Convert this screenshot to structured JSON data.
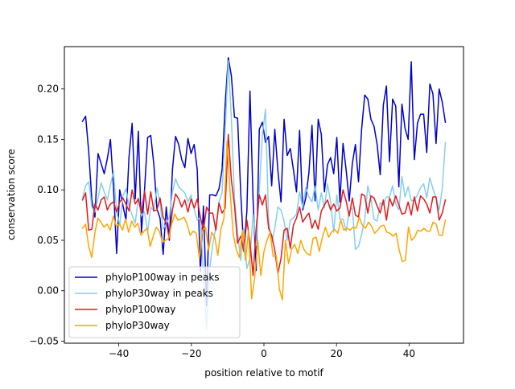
{
  "chart_data": {
    "type": "line",
    "xlabel": "position relative to motif",
    "ylabel": "conservation score",
    "xlim": [
      -55,
      55
    ],
    "ylim": [
      -0.052,
      0.242
    ],
    "xticks": [
      -40,
      -20,
      0,
      20,
      40
    ],
    "xtick_labels": [
      "−40",
      "−20",
      "0",
      "20",
      "40"
    ],
    "yticks": [
      -0.05,
      0.0,
      0.05,
      0.1,
      0.15,
      0.2
    ],
    "ytick_labels": [
      "−0.05",
      "0.00",
      "0.05",
      "0.10",
      "0.15",
      "0.20"
    ],
    "grid": false,
    "legend_position": "lower-left",
    "x_start": -50,
    "series": [
      {
        "name": "phyloP100way in peaks",
        "color": "#0000cd",
        "values": [
          0.168,
          0.173,
          0.138,
          0.09,
          0.073,
          0.136,
          0.126,
          0.116,
          0.131,
          0.15,
          0.102,
          0.037,
          0.1,
          0.085,
          0.07,
          0.133,
          0.166,
          0.091,
          0.158,
          0.058,
          0.1,
          0.152,
          0.154,
          0.125,
          0.081,
          0.072,
          0.036,
          0.083,
          0.05,
          0.12,
          0.153,
          0.145,
          0.13,
          0.122,
          0.151,
          0.136,
          0.145,
          0.12,
          0.019,
          0.084,
          -0.015,
          0.095,
          0.095,
          0.094,
          0.101,
          0.12,
          0.185,
          0.231,
          0.213,
          0.172,
          0.171,
          0.098,
          0.04,
          0.079,
          0.198,
          0.09,
          0.02,
          0.16,
          0.167,
          0.147,
          0.153,
          0.104,
          0.16,
          0.119,
          0.088,
          0.17,
          0.134,
          0.141,
          0.12,
          0.098,
          0.159,
          0.08,
          0.092,
          0.117,
          0.164,
          0.089,
          0.17,
          0.155,
          0.098,
          0.125,
          0.132,
          0.116,
          0.152,
          0.088,
          0.146,
          0.12,
          0.089,
          0.126,
          0.145,
          0.108,
          0.16,
          0.194,
          0.19,
          0.17,
          0.163,
          0.145,
          0.115,
          0.184,
          0.203,
          0.128,
          0.19,
          0.183,
          0.103,
          0.185,
          0.161,
          0.15,
          0.227,
          0.13,
          0.166,
          0.175,
          0.175,
          0.137,
          0.205,
          0.195,
          0.146,
          0.2,
          0.187,
          0.167
        ]
      },
      {
        "name": "phyloP30way in peaks",
        "color": "#87ceeb",
        "values": [
          0.092,
          0.104,
          0.108,
          0.083,
          0.078,
          0.092,
          0.107,
          0.098,
          0.09,
          0.105,
          0.118,
          0.078,
          0.065,
          0.094,
          0.101,
          0.084,
          0.075,
          0.067,
          0.092,
          0.074,
          0.078,
          0.058,
          0.083,
          0.079,
          0.102,
          0.087,
          0.061,
          0.066,
          0.073,
          0.098,
          0.111,
          0.103,
          0.1,
          0.097,
          0.088,
          0.095,
          0.081,
          0.07,
          0.073,
          0.016,
          -0.039,
          0.022,
          0.046,
          0.063,
          0.088,
          0.097,
          0.158,
          0.228,
          0.171,
          0.092,
          0.058,
          0.03,
          0.061,
          0.022,
          0.032,
          0.076,
          0.045,
          0.1,
          0.155,
          0.18,
          0.07,
          0.047,
          0.062,
          0.083,
          0.08,
          0.069,
          0.05,
          0.07,
          0.072,
          0.076,
          0.098,
          0.082,
          0.102,
          0.093,
          0.088,
          0.104,
          0.08,
          0.097,
          0.082,
          0.106,
          0.088,
          0.058,
          0.095,
          0.071,
          0.071,
          0.059,
          0.079,
          0.082,
          0.041,
          0.044,
          0.056,
          0.07,
          0.104,
          0.091,
          0.071,
          0.069,
          0.087,
          0.085,
          0.093,
          0.093,
          0.104,
          0.086,
          0.08,
          0.113,
          0.093,
          0.103,
          0.089,
          0.09,
          0.095,
          0.102,
          0.106,
          0.092,
          0.112,
          0.101,
          0.092,
          0.08,
          0.101,
          0.147
        ]
      },
      {
        "name": "phyloP100way",
        "color": "#e31a1c",
        "values": [
          0.09,
          0.097,
          0.06,
          0.061,
          0.086,
          0.08,
          0.09,
          0.093,
          0.08,
          0.086,
          0.088,
          0.078,
          0.088,
          0.092,
          0.086,
          0.079,
          0.1,
          0.086,
          0.091,
          0.077,
          0.099,
          0.076,
          0.098,
          0.079,
          0.08,
          0.092,
          0.073,
          0.067,
          0.052,
          0.08,
          0.096,
          0.091,
          0.083,
          0.09,
          0.078,
          0.091,
          0.082,
          0.091,
          0.073,
          0.06,
          0.083,
          0.077,
          0.077,
          0.06,
          0.087,
          0.077,
          0.082,
          0.155,
          0.11,
          0.085,
          0.047,
          0.054,
          0.039,
          0.07,
          0.048,
          0.015,
          0.062,
          0.095,
          0.085,
          0.095,
          0.062,
          0.055,
          0.04,
          0.017,
          0.032,
          0.06,
          0.062,
          0.042,
          0.065,
          0.072,
          0.083,
          0.068,
          0.073,
          0.077,
          0.062,
          0.07,
          0.061,
          0.079,
          0.085,
          0.09,
          0.08,
          0.086,
          0.079,
          0.082,
          0.1,
          0.089,
          0.074,
          0.092,
          0.075,
          0.073,
          0.096,
          0.094,
          0.077,
          0.094,
          0.092,
          0.084,
          0.077,
          0.09,
          0.07,
          0.092,
          0.084,
          0.094,
          0.085,
          0.076,
          0.077,
          0.088,
          0.075,
          0.093,
          0.079,
          0.094,
          0.091,
          0.086,
          0.077,
          0.093,
          0.093,
          0.07,
          0.077,
          0.09
        ]
      },
      {
        "name": "phyloP30way",
        "color": "#ffa500",
        "values": [
          0.062,
          0.066,
          0.044,
          0.033,
          0.057,
          0.072,
          0.068,
          0.063,
          0.066,
          0.06,
          0.074,
          0.064,
          0.066,
          0.06,
          0.071,
          0.058,
          0.069,
          0.063,
          0.067,
          0.055,
          0.059,
          0.062,
          0.044,
          0.054,
          0.063,
          0.059,
          0.048,
          0.05,
          0.052,
          0.066,
          0.076,
          0.07,
          0.071,
          0.073,
          0.066,
          0.055,
          0.059,
          0.057,
          0.032,
          0.06,
          0.063,
          0.04,
          0.058,
          0.053,
          0.035,
          0.061,
          0.072,
          0.148,
          0.098,
          0.056,
          0.041,
          0.033,
          0.06,
          0.03,
          0.06,
          -0.008,
          0.013,
          0.05,
          0.015,
          0.039,
          0.05,
          0.058,
          0.034,
          0.035,
          0.002,
          -0.009,
          0.05,
          0.027,
          0.041,
          0.046,
          0.037,
          0.05,
          0.041,
          0.037,
          0.035,
          0.052,
          0.053,
          0.039,
          0.053,
          0.063,
          0.053,
          0.058,
          0.061,
          0.057,
          0.07,
          0.06,
          0.062,
          0.06,
          0.063,
          0.062,
          0.073,
          0.065,
          0.062,
          0.068,
          0.064,
          0.057,
          0.06,
          0.064,
          0.065,
          0.058,
          0.057,
          0.054,
          0.057,
          0.04,
          0.029,
          0.03,
          0.063,
          0.05,
          0.053,
          0.06,
          0.059,
          0.062,
          0.059,
          0.059,
          0.068,
          0.066,
          0.055,
          0.055,
          0.07
        ]
      }
    ]
  }
}
